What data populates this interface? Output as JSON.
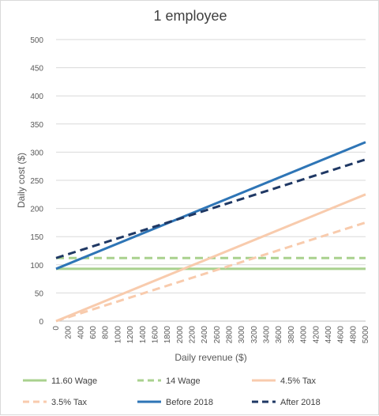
{
  "chart_data": {
    "type": "line",
    "title": "1 employee",
    "xlabel": "Daily revenue ($)",
    "ylabel": "Daily cost ($)",
    "ylim": [
      0,
      500
    ],
    "yticks": [
      0,
      50,
      100,
      150,
      200,
      250,
      300,
      350,
      400,
      450,
      500
    ],
    "xlim": [
      0,
      5000
    ],
    "xticks": [
      0,
      200,
      400,
      600,
      800,
      1000,
      1200,
      1400,
      1600,
      1800,
      2000,
      2200,
      2400,
      2600,
      2800,
      3000,
      3200,
      3400,
      3600,
      3800,
      4000,
      4200,
      4400,
      4600,
      4800,
      5000
    ],
    "grid": "horizontal",
    "legend_position": "bottom",
    "series": [
      {
        "name": "11.60 Wage",
        "color": "#a9d18e",
        "dash": "solid",
        "x": [
          0,
          5000
        ],
        "y": [
          92.8,
          92.8
        ]
      },
      {
        "name": "14 Wage",
        "color": "#a9d18e",
        "dash": "dashed",
        "x": [
          0,
          5000
        ],
        "y": [
          112,
          112
        ]
      },
      {
        "name": "4.5% Tax",
        "color": "#f8cbad",
        "dash": "solid",
        "x": [
          0,
          5000
        ],
        "y": [
          0,
          225
        ]
      },
      {
        "name": "3.5% Tax",
        "color": "#f8cbad",
        "dash": "dashed",
        "x": [
          0,
          5000
        ],
        "y": [
          0,
          175
        ]
      },
      {
        "name": "Before 2018",
        "color": "#2e75b6",
        "dash": "solid",
        "x": [
          0,
          5000
        ],
        "y": [
          92.8,
          317.8
        ]
      },
      {
        "name": "After 2018",
        "color": "#1f3864",
        "dash": "dashed",
        "x": [
          0,
          5000
        ],
        "y": [
          112,
          287
        ]
      }
    ]
  }
}
